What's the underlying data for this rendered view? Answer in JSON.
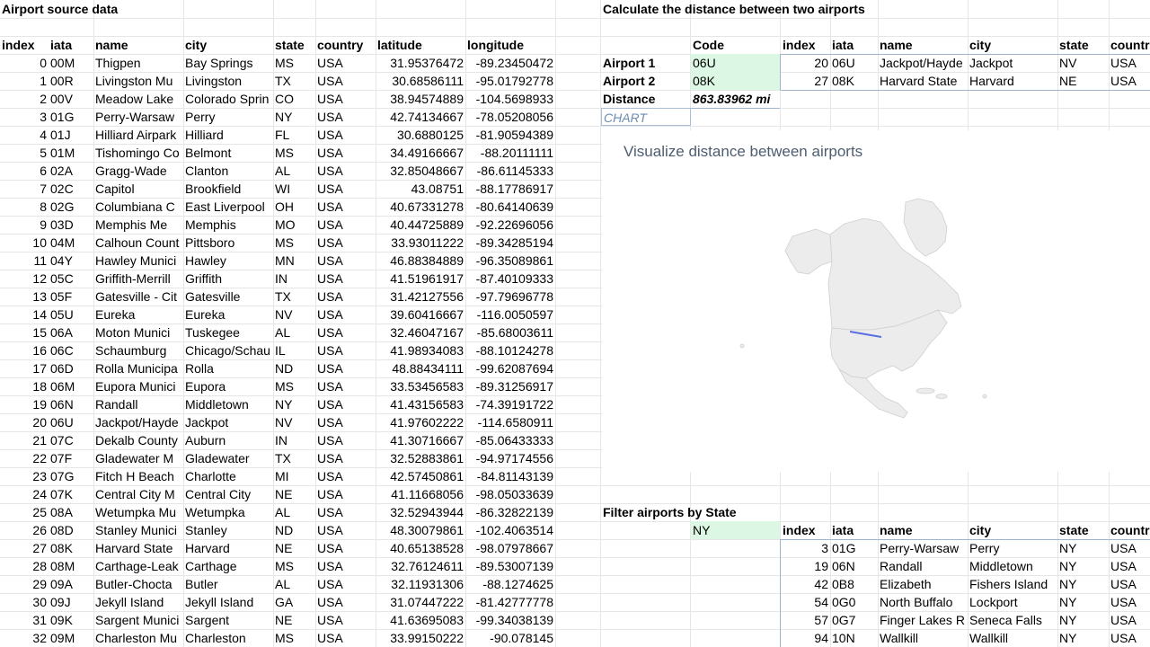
{
  "source": {
    "title": "Airport source data",
    "headers": [
      "index",
      "iata",
      "name",
      "city",
      "state",
      "country",
      "latitude",
      "longitude"
    ],
    "rows": [
      [
        "0",
        "00M",
        "Thigpen",
        "Bay Springs",
        "MS",
        "USA",
        "31.95376472",
        "-89.23450472"
      ],
      [
        "1",
        "00R",
        "Livingston Mu",
        "Livingston",
        "TX",
        "USA",
        "30.68586111",
        "-95.01792778"
      ],
      [
        "2",
        "00V",
        "Meadow Lake",
        "Colorado Sprin",
        "CO",
        "USA",
        "38.94574889",
        "-104.5698933"
      ],
      [
        "3",
        "01G",
        "Perry-Warsaw",
        "Perry",
        "NY",
        "USA",
        "42.74134667",
        "-78.05208056"
      ],
      [
        "4",
        "01J",
        "Hilliard Airpark",
        "Hilliard",
        "FL",
        "USA",
        "30.6880125",
        "-81.90594389"
      ],
      [
        "5",
        "01M",
        "Tishomingo Co",
        "Belmont",
        "MS",
        "USA",
        "34.49166667",
        "-88.20111111"
      ],
      [
        "6",
        "02A",
        "Gragg-Wade",
        "Clanton",
        "AL",
        "USA",
        "32.85048667",
        "-86.61145333"
      ],
      [
        "7",
        "02C",
        "Capitol",
        "Brookfield",
        "WI",
        "USA",
        "43.08751",
        "-88.17786917"
      ],
      [
        "8",
        "02G",
        "Columbiana C",
        "East Liverpool",
        "OH",
        "USA",
        "40.67331278",
        "-80.64140639"
      ],
      [
        "9",
        "03D",
        "Memphis Me",
        "Memphis",
        "MO",
        "USA",
        "40.44725889",
        "-92.22696056"
      ],
      [
        "10",
        "04M",
        "Calhoun Count",
        "Pittsboro",
        "MS",
        "USA",
        "33.93011222",
        "-89.34285194"
      ],
      [
        "11",
        "04Y",
        "Hawley Munici",
        "Hawley",
        "MN",
        "USA",
        "46.88384889",
        "-96.35089861"
      ],
      [
        "12",
        "05C",
        "Griffith-Merrill",
        "Griffith",
        "IN",
        "USA",
        "41.51961917",
        "-87.40109333"
      ],
      [
        "13",
        "05F",
        "Gatesville - Cit",
        "Gatesville",
        "TX",
        "USA",
        "31.42127556",
        "-97.79696778"
      ],
      [
        "14",
        "05U",
        "Eureka",
        "Eureka",
        "NV",
        "USA",
        "39.60416667",
        "-116.0050597"
      ],
      [
        "15",
        "06A",
        "Moton  Munici",
        "Tuskegee",
        "AL",
        "USA",
        "32.46047167",
        "-85.68003611"
      ],
      [
        "16",
        "06C",
        "Schaumburg",
        "Chicago/Schau",
        "IL",
        "USA",
        "41.98934083",
        "-88.10124278"
      ],
      [
        "17",
        "06D",
        "Rolla Municipa",
        "Rolla",
        "ND",
        "USA",
        "48.88434111",
        "-99.62087694"
      ],
      [
        "18",
        "06M",
        "Eupora Munici",
        "Eupora",
        "MS",
        "USA",
        "33.53456583",
        "-89.31256917"
      ],
      [
        "19",
        "06N",
        "Randall",
        "Middletown",
        "NY",
        "USA",
        "41.43156583",
        "-74.39191722"
      ],
      [
        "20",
        "06U",
        "Jackpot/Hayde",
        "Jackpot",
        "NV",
        "USA",
        "41.97602222",
        "-114.6580911"
      ],
      [
        "21",
        "07C",
        "Dekalb County",
        "Auburn",
        "IN",
        "USA",
        "41.30716667",
        "-85.06433333"
      ],
      [
        "22",
        "07F",
        "Gladewater M",
        "Gladewater",
        "TX",
        "USA",
        "32.52883861",
        "-94.97174556"
      ],
      [
        "23",
        "07G",
        "Fitch H Beach",
        "Charlotte",
        "MI",
        "USA",
        "42.57450861",
        "-84.81143139"
      ],
      [
        "24",
        "07K",
        "Central City M",
        "Central City",
        "NE",
        "USA",
        "41.11668056",
        "-98.05033639"
      ],
      [
        "25",
        "08A",
        "Wetumpka Mu",
        "Wetumpka",
        "AL",
        "USA",
        "32.52943944",
        "-86.32822139"
      ],
      [
        "26",
        "08D",
        "Stanley Munici",
        "Stanley",
        "ND",
        "USA",
        "48.30079861",
        "-102.4063514"
      ],
      [
        "27",
        "08K",
        "Harvard State",
        "Harvard",
        "NE",
        "USA",
        "40.65138528",
        "-98.07978667"
      ],
      [
        "28",
        "08M",
        "Carthage-Leak",
        "Carthage",
        "MS",
        "USA",
        "32.76124611",
        "-89.53007139"
      ],
      [
        "29",
        "09A",
        "Butler-Chocta",
        "Butler",
        "AL",
        "USA",
        "32.11931306",
        "-88.1274625"
      ],
      [
        "30",
        "09J",
        "Jekyll Island",
        "Jekyll Island",
        "GA",
        "USA",
        "31.07447222",
        "-81.42777778"
      ],
      [
        "31",
        "09K",
        "Sargent Munici",
        "Sargent",
        "NE",
        "USA",
        "41.63695083",
        "-99.34038139"
      ],
      [
        "32",
        "09M",
        "Charleston Mu",
        "Charleston",
        "MS",
        "USA",
        "33.99150222",
        "-90.078145"
      ]
    ]
  },
  "distance": {
    "title": "Calculate the distance between two airports",
    "code_header": "Code",
    "airport1_label": "Airport 1",
    "airport1_code": "06U",
    "airport2_label": "Airport 2",
    "airport2_code": "08K",
    "distance_label": "Distance",
    "distance_value": "863.83962 mi",
    "chart_placeholder": "CHART",
    "lookup_headers": [
      "index",
      "iata",
      "name",
      "city",
      "state",
      "countr"
    ],
    "lookup_rows": [
      [
        "20",
        "06U",
        "Jackpot/Hayde",
        "Jackpot",
        "NV",
        "USA"
      ],
      [
        "27",
        "08K",
        "Harvard State",
        "Harvard",
        "NE",
        "USA"
      ]
    ]
  },
  "chart": {
    "title": "Visualize distance between airports",
    "route_color": "#5b6ee1",
    "land_color": "#ececec"
  },
  "filter": {
    "title": "Filter airports by State",
    "state_value": "NY",
    "headers": [
      "index",
      "iata",
      "name",
      "city",
      "state",
      "countr"
    ],
    "rows": [
      [
        "3",
        "01G",
        "Perry-Warsaw",
        "Perry",
        "NY",
        "USA"
      ],
      [
        "19",
        "06N",
        "Randall",
        "Middletown",
        "NY",
        "USA"
      ],
      [
        "42",
        "0B8",
        "Elizabeth",
        "Fishers Island",
        "NY",
        "USA"
      ],
      [
        "54",
        "0G0",
        "North Buffalo",
        "Lockport",
        "NY",
        "USA"
      ],
      [
        "57",
        "0G7",
        "Finger Lakes R",
        "Seneca Falls",
        "NY",
        "USA"
      ],
      [
        "94",
        "10N",
        "Wallkill",
        "Wallkill",
        "NY",
        "USA"
      ]
    ]
  }
}
